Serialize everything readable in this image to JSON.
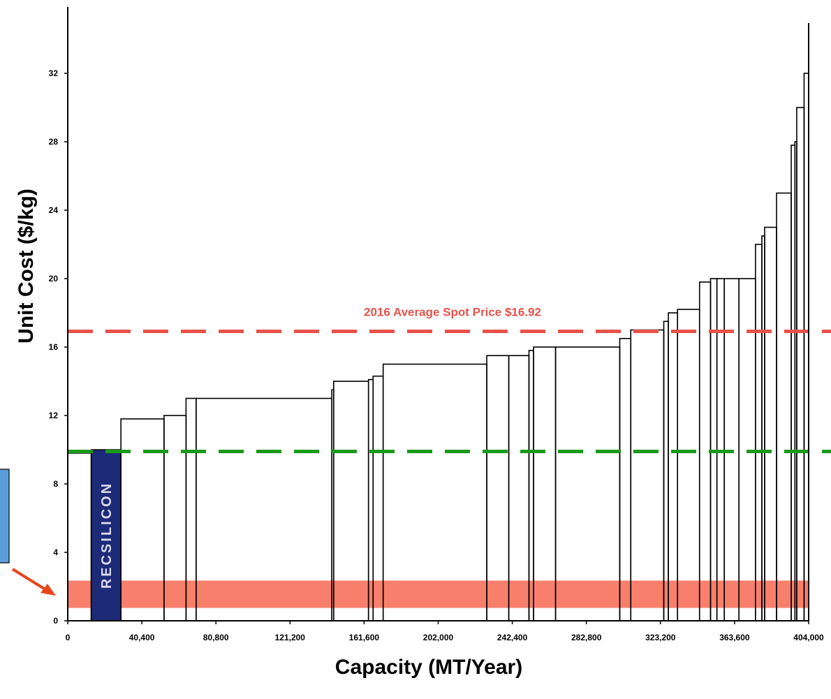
{
  "colors": {
    "spot_line": "#e8524a",
    "green_line": "#1a9a1a",
    "band": "#f87f6c",
    "bar_outline": "#000000",
    "highlight_bar": "#1c2a78",
    "arrow": "#e8451c",
    "side_box": "#5a9ed8"
  },
  "chart_data": {
    "type": "bar",
    "xlabel": "Capacity (MT/Year)",
    "ylabel": "Unit Cost ($/kg)",
    "xlim": [
      0,
      404000
    ],
    "ylim": [
      0,
      35
    ],
    "x_ticks": [
      0,
      40400,
      80800,
      121200,
      161600,
      202000,
      242400,
      282800,
      323200,
      363600,
      404000
    ],
    "x_tick_labels": [
      "0",
      "40,400",
      "80,800",
      "121,200",
      "161,600",
      "202,000",
      "242,400",
      "282,800",
      "323,200",
      "363,600",
      "404,000"
    ],
    "y_ticks": [
      0,
      4,
      8,
      12,
      16,
      20,
      24,
      28,
      32
    ],
    "y_tick_labels": [
      "0",
      "4",
      "8",
      "12",
      "16",
      "20",
      "24",
      "28",
      "32"
    ],
    "bars": [
      {
        "x0": 0,
        "x1": 12800,
        "cost": 9.8
      },
      {
        "x0": 12800,
        "x1": 29000,
        "cost": 10.0,
        "highlight": true,
        "label": "RECSILICON"
      },
      {
        "x0": 29000,
        "x1": 52500,
        "cost": 11.8
      },
      {
        "x0": 52500,
        "x1": 64500,
        "cost": 12.0
      },
      {
        "x0": 64500,
        "x1": 70000,
        "cost": 13.0
      },
      {
        "x0": 70000,
        "x1": 144000,
        "cost": 13.0
      },
      {
        "x0": 144000,
        "x1": 145000,
        "cost": 13.5
      },
      {
        "x0": 145000,
        "x1": 164000,
        "cost": 14.0
      },
      {
        "x0": 164000,
        "x1": 166500,
        "cost": 14.1
      },
      {
        "x0": 166500,
        "x1": 172000,
        "cost": 14.3
      },
      {
        "x0": 172000,
        "x1": 228500,
        "cost": 15.0
      },
      {
        "x0": 228500,
        "x1": 240500,
        "cost": 15.5
      },
      {
        "x0": 240500,
        "x1": 251500,
        "cost": 15.5
      },
      {
        "x0": 251500,
        "x1": 254000,
        "cost": 15.8
      },
      {
        "x0": 254000,
        "x1": 266000,
        "cost": 16.0
      },
      {
        "x0": 266000,
        "x1": 301000,
        "cost": 16.0
      },
      {
        "x0": 301000,
        "x1": 307000,
        "cost": 16.5
      },
      {
        "x0": 307000,
        "x1": 325000,
        "cost": 17.0
      },
      {
        "x0": 325000,
        "x1": 327500,
        "cost": 17.5
      },
      {
        "x0": 327500,
        "x1": 332500,
        "cost": 18.0
      },
      {
        "x0": 332500,
        "x1": 344500,
        "cost": 18.2
      },
      {
        "x0": 344500,
        "x1": 350500,
        "cost": 19.8
      },
      {
        "x0": 350500,
        "x1": 354000,
        "cost": 20.0
      },
      {
        "x0": 354000,
        "x1": 358000,
        "cost": 20.0
      },
      {
        "x0": 358000,
        "x1": 366000,
        "cost": 20.0
      },
      {
        "x0": 366000,
        "x1": 375000,
        "cost": 20.0
      },
      {
        "x0": 375000,
        "x1": 378500,
        "cost": 22.0
      },
      {
        "x0": 378500,
        "x1": 380000,
        "cost": 22.5
      },
      {
        "x0": 380000,
        "x1": 386500,
        "cost": 23.0
      },
      {
        "x0": 386500,
        "x1": 394500,
        "cost": 25.0
      },
      {
        "x0": 394500,
        "x1": 396500,
        "cost": 27.8
      },
      {
        "x0": 396500,
        "x1": 397500,
        "cost": 28.0
      },
      {
        "x0": 397500,
        "x1": 401500,
        "cost": 30.0
      },
      {
        "x0": 401500,
        "x1": 404000,
        "cost": 32.0
      }
    ],
    "reference_lines": [
      {
        "y": 16.92,
        "label": "2016 Average Spot Price $16.92",
        "color": "#e8524a"
      },
      {
        "y": 9.9,
        "label": "",
        "color": "#1a9a1a"
      }
    ],
    "band": {
      "y0": 0.75,
      "y1": 2.35
    }
  }
}
